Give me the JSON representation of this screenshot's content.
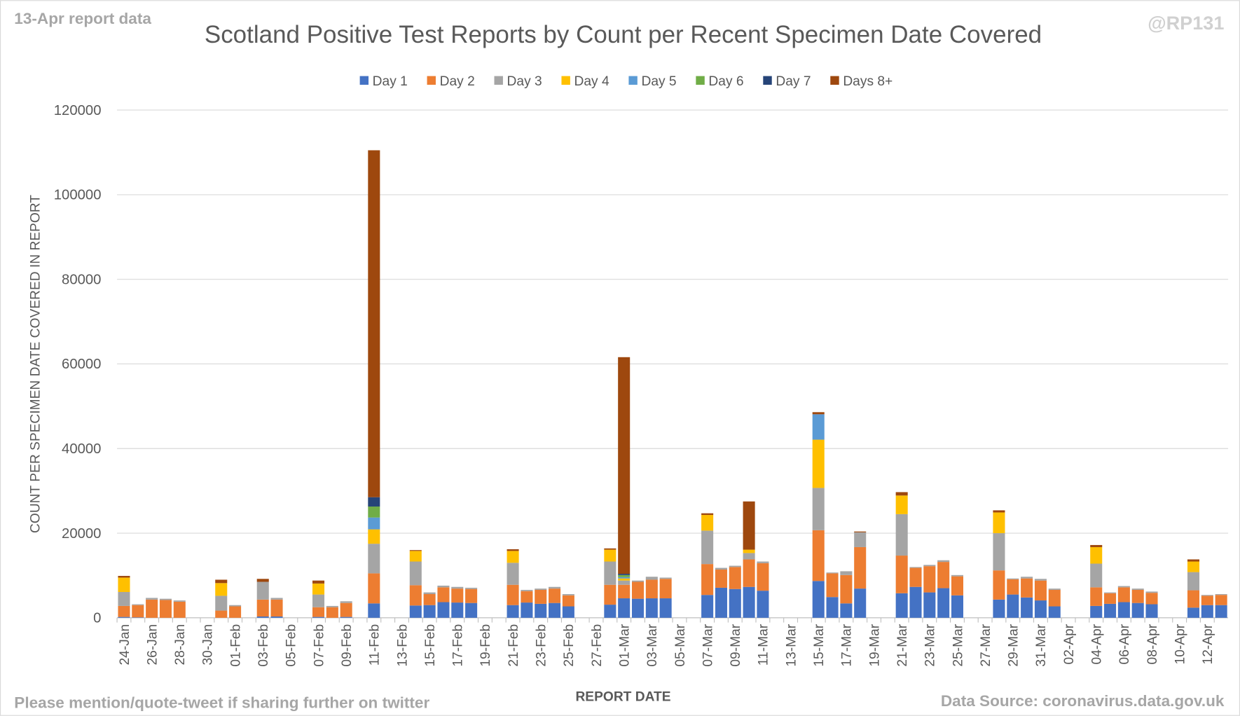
{
  "chart_data": {
    "type": "stacked_bar",
    "title": "Scotland Positive Test Reports by Count per Recent Specimen Date Covered",
    "subtitle": "13-Apr report data",
    "credit": "@RP131",
    "footer_left": "Please mention/quote-tweet if sharing further on twitter",
    "footer_right": "Data Source: coronavirus.data.gov.uk",
    "x_label": "REPORT DATE",
    "y_label": "COUNT PER SPECIMEN DATE COVERED IN REPORT",
    "ylim": [
      0,
      120000
    ],
    "yticks": [
      0,
      20000,
      40000,
      60000,
      80000,
      100000,
      120000
    ],
    "grid": true,
    "legend": "top",
    "categories": [
      "24-Jan",
      null,
      "26-Jan",
      null,
      "28-Jan",
      null,
      "30-Jan",
      null,
      "01-Feb",
      null,
      "03-Feb",
      null,
      "05-Feb",
      null,
      "07-Feb",
      null,
      "09-Feb",
      null,
      "11-Feb",
      null,
      "13-Feb",
      null,
      "15-Feb",
      null,
      "17-Feb",
      null,
      "19-Feb",
      null,
      "21-Feb",
      null,
      "23-Feb",
      null,
      "25-Feb",
      null,
      "27-Feb",
      null,
      "01-Mar",
      null,
      "03-Mar",
      null,
      "05-Mar",
      null,
      "07-Mar",
      null,
      "09-Mar",
      null,
      "11-Mar",
      null,
      "13-Mar",
      null,
      "15-Mar",
      null,
      "17-Mar",
      null,
      "19-Mar",
      null,
      "21-Mar",
      null,
      "23-Mar",
      null,
      "25-Mar",
      null,
      "27-Mar",
      null,
      "29-Mar",
      null,
      "31-Mar",
      null,
      "02-Apr",
      null,
      "04-Apr",
      null,
      "06-Apr",
      null,
      "08-Apr",
      null,
      "10-Apr",
      null,
      "12-Apr",
      null
    ],
    "series": [
      {
        "name": "Day 1",
        "color": "#4472c4",
        "values": [
          200,
          100,
          0,
          0,
          0,
          0,
          0,
          0,
          0,
          0,
          300,
          300,
          0,
          0,
          200,
          0,
          200,
          0,
          3400,
          0,
          0,
          2900,
          3000,
          3700,
          3600,
          3500,
          0,
          0,
          3000,
          3600,
          3300,
          3500,
          2700,
          0,
          0,
          3100,
          4600,
          4500,
          4600,
          4600,
          0,
          0,
          5400,
          7100,
          6800,
          7300,
          6400,
          0,
          0,
          0,
          8700,
          4900,
          3400,
          6900,
          0,
          0,
          5800,
          7300,
          6000,
          7000,
          5300,
          0,
          0,
          4300,
          5500,
          4800,
          4100,
          2700,
          0,
          0,
          2800,
          3300,
          3700,
          3500,
          3200,
          0,
          0,
          2400,
          3000,
          3000
        ]
      },
      {
        "name": "Day 2",
        "color": "#ed7d31",
        "values": [
          2600,
          2900,
          4300,
          4200,
          3800,
          0,
          0,
          1700,
          2700,
          0,
          4000,
          4000,
          0,
          0,
          2300,
          2500,
          3300,
          0,
          7100,
          0,
          0,
          4800,
          2600,
          3500,
          3300,
          3300,
          0,
          0,
          4800,
          2700,
          3300,
          3400,
          2600,
          0,
          0,
          4700,
          3200,
          4000,
          4400,
          4600,
          0,
          0,
          7300,
          4300,
          5200,
          6500,
          6500,
          0,
          0,
          0,
          12000,
          5600,
          6700,
          9800,
          0,
          0,
          8900,
          4500,
          6200,
          6200,
          4500,
          0,
          0,
          6900,
          3600,
          4500,
          4700,
          3900,
          0,
          0,
          4400,
          2500,
          3500,
          3100,
          2700,
          0,
          0,
          4100,
          2200,
          2400
        ]
      },
      {
        "name": "Day 3",
        "color": "#a5a5a5",
        "values": [
          3300,
          200,
          400,
          300,
          300,
          0,
          0,
          3500,
          300,
          0,
          4200,
          400,
          0,
          0,
          3000,
          300,
          400,
          0,
          7000,
          0,
          0,
          5600,
          400,
          400,
          400,
          300,
          0,
          0,
          5200,
          300,
          300,
          400,
          300,
          0,
          0,
          5500,
          1000,
          300,
          700,
          300,
          0,
          0,
          7900,
          400,
          300,
          1500,
          400,
          0,
          0,
          0,
          10000,
          200,
          900,
          3500,
          0,
          0,
          9800,
          200,
          300,
          400,
          300,
          0,
          0,
          8800,
          200,
          400,
          400,
          300,
          0,
          0,
          5600,
          200,
          300,
          300,
          300,
          0,
          0,
          4300,
          200,
          200
        ]
      },
      {
        "name": "Day 4",
        "color": "#ffc000",
        "values": [
          3400,
          0,
          0,
          0,
          0,
          0,
          0,
          3000,
          0,
          0,
          0,
          0,
          0,
          0,
          2600,
          0,
          0,
          0,
          3400,
          0,
          0,
          2500,
          0,
          0,
          0,
          0,
          0,
          0,
          2800,
          0,
          0,
          0,
          0,
          0,
          0,
          2800,
          500,
          0,
          0,
          0,
          0,
          0,
          3700,
          0,
          0,
          800,
          0,
          0,
          0,
          0,
          11400,
          0,
          0,
          0,
          0,
          0,
          4400,
          0,
          0,
          0,
          0,
          0,
          0,
          4900,
          0,
          0,
          0,
          0,
          0,
          0,
          3900,
          0,
          0,
          0,
          0,
          0,
          0,
          2500,
          0,
          0
        ]
      },
      {
        "name": "Day 5",
        "color": "#5b9bd5",
        "values": [
          0,
          0,
          0,
          0,
          0,
          0,
          0,
          0,
          0,
          0,
          0,
          0,
          0,
          0,
          0,
          0,
          0,
          0,
          2800,
          0,
          0,
          0,
          0,
          0,
          0,
          0,
          0,
          0,
          0,
          0,
          0,
          0,
          0,
          0,
          0,
          0,
          300,
          0,
          0,
          0,
          0,
          0,
          0,
          0,
          0,
          0,
          0,
          0,
          0,
          0,
          6000,
          0,
          0,
          0,
          0,
          0,
          0,
          0,
          0,
          0,
          0,
          0,
          0,
          0,
          0,
          0,
          0,
          0,
          0,
          0,
          0,
          0,
          0,
          0,
          0,
          0,
          0,
          0,
          0,
          0
        ]
      },
      {
        "name": "Day 6",
        "color": "#70ad47",
        "values": [
          0,
          0,
          0,
          0,
          0,
          0,
          0,
          0,
          0,
          0,
          0,
          0,
          0,
          0,
          0,
          0,
          0,
          0,
          2600,
          0,
          0,
          0,
          0,
          0,
          0,
          0,
          0,
          0,
          0,
          0,
          0,
          0,
          0,
          0,
          0,
          0,
          500,
          0,
          0,
          0,
          0,
          0,
          0,
          0,
          0,
          0,
          0,
          0,
          0,
          0,
          0,
          0,
          0,
          0,
          0,
          0,
          0,
          0,
          0,
          0,
          0,
          0,
          0,
          0,
          0,
          0,
          0,
          0,
          0,
          0,
          0,
          0,
          0,
          0,
          0,
          0,
          0,
          0,
          0,
          0
        ]
      },
      {
        "name": "Day 7",
        "color": "#264478",
        "values": [
          0,
          0,
          0,
          0,
          0,
          0,
          0,
          0,
          0,
          0,
          0,
          0,
          0,
          0,
          0,
          0,
          0,
          0,
          2200,
          0,
          0,
          0,
          0,
          0,
          0,
          0,
          0,
          0,
          0,
          0,
          0,
          0,
          0,
          0,
          0,
          0,
          300,
          0,
          0,
          0,
          0,
          0,
          0,
          0,
          0,
          0,
          0,
          0,
          0,
          0,
          0,
          0,
          0,
          0,
          0,
          0,
          0,
          0,
          0,
          0,
          0,
          0,
          0,
          0,
          0,
          0,
          0,
          0,
          0,
          0,
          0,
          0,
          0,
          0,
          0,
          0,
          0,
          0,
          0,
          0
        ]
      },
      {
        "name": "Days 8+",
        "color": "#9e480e",
        "values": [
          400,
          0,
          0,
          0,
          0,
          0,
          0,
          800,
          0,
          0,
          700,
          0,
          0,
          0,
          700,
          0,
          0,
          0,
          82000,
          0,
          0,
          200,
          0,
          0,
          0,
          0,
          0,
          0,
          400,
          0,
          0,
          0,
          0,
          0,
          0,
          300,
          51200,
          0,
          0,
          0,
          0,
          0,
          400,
          0,
          0,
          11400,
          0,
          0,
          0,
          0,
          500,
          0,
          0,
          200,
          0,
          0,
          800,
          0,
          0,
          0,
          0,
          0,
          0,
          500,
          0,
          0,
          0,
          0,
          0,
          0,
          500,
          0,
          0,
          0,
          0,
          0,
          0,
          500,
          0,
          0
        ]
      }
    ]
  }
}
